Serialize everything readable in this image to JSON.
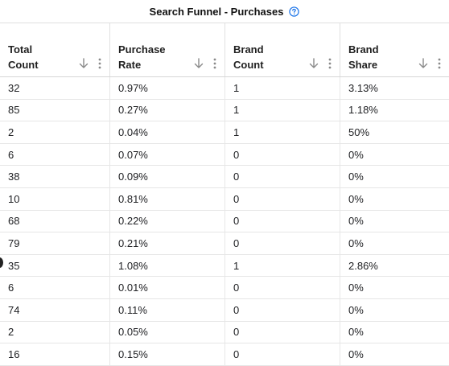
{
  "title": "Search Funnel - Purchases",
  "icons": {
    "help": "help-circle-icon",
    "sort": "arrow-down-icon",
    "menu": "more-vertical-icon"
  },
  "colors": {
    "help_icon": "#1a73e8",
    "icon_gray": "#8a8a8a"
  },
  "columns": [
    {
      "line1": "Total",
      "line2": "Count"
    },
    {
      "line1": "Purchase",
      "line2": "Rate"
    },
    {
      "line1": "Brand",
      "line2": "Count"
    },
    {
      "line1": "Brand",
      "line2": "Share"
    }
  ],
  "rows": [
    [
      "32",
      "0.97%",
      "1",
      "3.13%"
    ],
    [
      "85",
      "0.27%",
      "1",
      "1.18%"
    ],
    [
      "2",
      "0.04%",
      "1",
      "50%"
    ],
    [
      "6",
      "0.07%",
      "0",
      "0%"
    ],
    [
      "38",
      "0.09%",
      "0",
      "0%"
    ],
    [
      "10",
      "0.81%",
      "0",
      "0%"
    ],
    [
      "68",
      "0.22%",
      "0",
      "0%"
    ],
    [
      "79",
      "0.21%",
      "0",
      "0%"
    ],
    [
      "35",
      "1.08%",
      "1",
      "2.86%"
    ],
    [
      "6",
      "0.01%",
      "0",
      "0%"
    ],
    [
      "74",
      "0.11%",
      "0",
      "0%"
    ],
    [
      "2",
      "0.05%",
      "0",
      "0%"
    ],
    [
      "16",
      "0.15%",
      "0",
      "0%"
    ]
  ]
}
